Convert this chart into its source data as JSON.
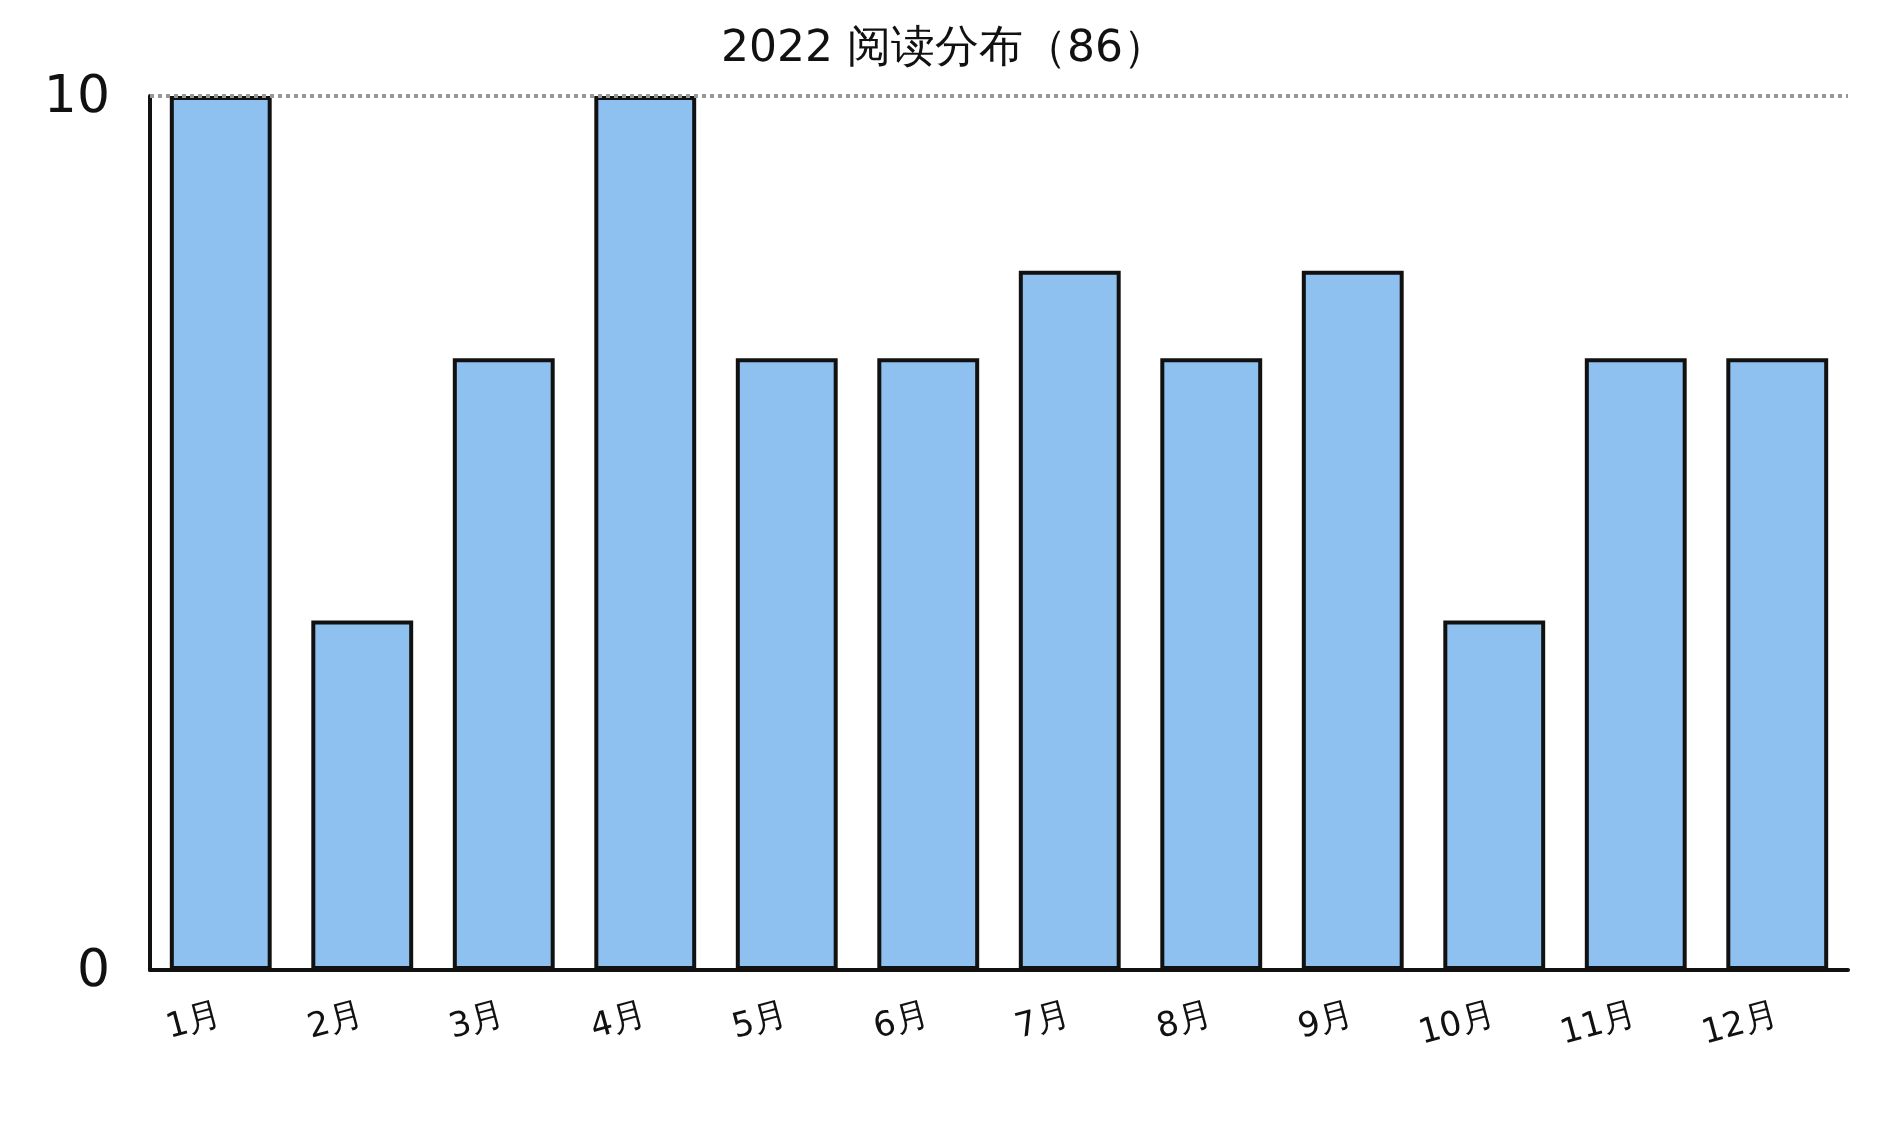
{
  "chart_data": {
    "type": "bar",
    "title": "2022 阅读分布（86）",
    "categories": [
      "1月",
      "2月",
      "3月",
      "4月",
      "5月",
      "6月",
      "7月",
      "8月",
      "9月",
      "10月",
      "11月",
      "12月"
    ],
    "values": [
      10,
      4,
      7,
      10,
      7,
      7,
      8,
      7,
      8,
      4,
      7,
      7
    ],
    "color": "#8fc1f0",
    "ylim": [
      0,
      10
    ],
    "yticks": [
      0,
      10
    ],
    "grid": false,
    "ref_lines": [
      {
        "axis": "y",
        "value": 10,
        "color": "#999999",
        "line_style": "dotted"
      }
    ]
  }
}
